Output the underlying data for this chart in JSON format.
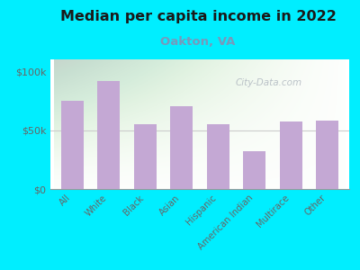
{
  "title": "Median per capita income in 2022",
  "subtitle": "Oakton, VA",
  "categories": [
    "All",
    "White",
    "Black",
    "Asian",
    "Hispanic",
    "American Indian",
    "Multirace",
    "Other"
  ],
  "values": [
    75000,
    92000,
    55000,
    70000,
    55000,
    32000,
    57000,
    58000
  ],
  "bar_color": "#c4a8d4",
  "background_outer": "#00eeff",
  "title_color": "#1a1a1a",
  "subtitle_color": "#7799bb",
  "tick_label_color": "#666666",
  "ytick_labels": [
    "$0",
    "$50k",
    "$100k"
  ],
  "ytick_values": [
    0,
    50000,
    100000
  ],
  "ylim": [
    0,
    110000
  ],
  "watermark": "City-Data.com",
  "watermark_color": "#b0b8c0",
  "hline_color": "#cccccc",
  "hline_y": 50000
}
